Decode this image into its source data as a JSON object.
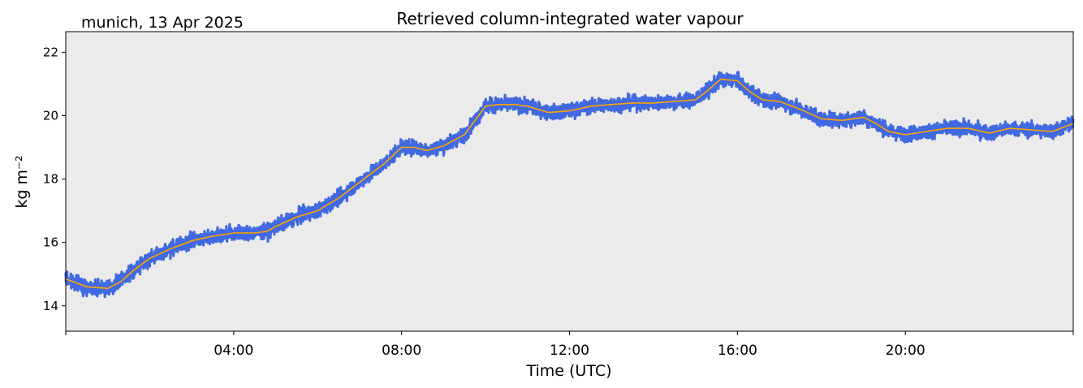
{
  "location_date": "munich, 13 Apr 2025",
  "chart_data": {
    "type": "line",
    "title": "Retrieved column-integrated water vapour",
    "xlabel": "Time (UTC)",
    "ylabel": "kg m⁻²",
    "xlim": [
      0,
      24
    ],
    "ylim": [
      13.2,
      22.65
    ],
    "x_ticks": [
      0,
      4,
      8,
      12,
      16,
      20,
      24
    ],
    "x_tick_labels": [
      "",
      "04:00",
      "08:00",
      "12:00",
      "16:00",
      "20:00",
      ""
    ],
    "y_ticks": [
      14,
      16,
      18,
      20,
      22
    ],
    "y_tick_labels": [
      "14",
      "16",
      "18",
      "20",
      "22"
    ],
    "grid": false,
    "background_color": "#ebebeb",
    "series": [
      {
        "style": "scatter",
        "color": "#4169e1",
        "x": [
          0.0,
          0.5,
          1.0,
          1.3,
          1.6,
          2.0,
          2.5,
          3.0,
          3.5,
          4.0,
          4.5,
          4.8,
          5.0,
          5.5,
          6.0,
          6.5,
          7.0,
          7.3,
          7.6,
          8.0,
          8.3,
          8.6,
          9.0,
          9.5,
          10.0,
          10.3,
          10.7,
          11.0,
          11.5,
          12.0,
          12.5,
          13.0,
          13.5,
          14.0,
          14.5,
          15.0,
          15.3,
          15.6,
          16.0,
          16.3,
          16.6,
          17.0,
          17.5,
          18.0,
          18.5,
          19.0,
          19.3,
          19.6,
          20.0,
          20.5,
          21.0,
          21.5,
          22.0,
          22.5,
          23.0,
          23.5,
          24.0
        ],
        "y": [
          14.85,
          14.6,
          14.55,
          14.75,
          15.1,
          15.5,
          15.8,
          16.05,
          16.2,
          16.3,
          16.3,
          16.35,
          16.5,
          16.8,
          17.0,
          17.4,
          17.9,
          18.2,
          18.5,
          19.0,
          19.0,
          18.9,
          19.05,
          19.4,
          20.3,
          20.35,
          20.35,
          20.3,
          20.1,
          20.15,
          20.3,
          20.35,
          20.4,
          20.4,
          20.45,
          20.5,
          20.8,
          21.15,
          21.1,
          20.75,
          20.5,
          20.45,
          20.2,
          19.9,
          19.85,
          19.95,
          19.75,
          19.5,
          19.4,
          19.5,
          19.6,
          19.6,
          19.45,
          19.6,
          19.55,
          19.5,
          19.75
        ]
      },
      {
        "style": "line",
        "color": "#ffa500",
        "x": [
          0.0,
          0.5,
          1.0,
          1.3,
          1.6,
          2.0,
          2.5,
          3.0,
          3.5,
          4.0,
          4.5,
          4.8,
          5.0,
          5.5,
          6.0,
          6.5,
          7.0,
          7.3,
          7.6,
          8.0,
          8.3,
          8.6,
          9.0,
          9.5,
          10.0,
          10.3,
          10.7,
          11.0,
          11.5,
          12.0,
          12.5,
          13.0,
          13.5,
          14.0,
          14.5,
          15.0,
          15.3,
          15.6,
          16.0,
          16.3,
          16.6,
          17.0,
          17.5,
          18.0,
          18.5,
          19.0,
          19.3,
          19.6,
          20.0,
          20.5,
          21.0,
          21.5,
          22.0,
          22.5,
          23.0,
          23.5,
          24.0
        ],
        "y": [
          14.85,
          14.6,
          14.55,
          14.75,
          15.1,
          15.5,
          15.8,
          16.05,
          16.2,
          16.3,
          16.3,
          16.35,
          16.5,
          16.8,
          17.0,
          17.4,
          17.9,
          18.2,
          18.5,
          19.0,
          19.0,
          18.9,
          19.05,
          19.4,
          20.3,
          20.35,
          20.35,
          20.3,
          20.1,
          20.15,
          20.3,
          20.35,
          20.4,
          20.4,
          20.45,
          20.5,
          20.8,
          21.15,
          21.1,
          20.75,
          20.5,
          20.45,
          20.2,
          19.9,
          19.85,
          19.95,
          19.75,
          19.5,
          19.4,
          19.5,
          19.6,
          19.6,
          19.45,
          19.6,
          19.55,
          19.5,
          19.75
        ]
      }
    ]
  }
}
